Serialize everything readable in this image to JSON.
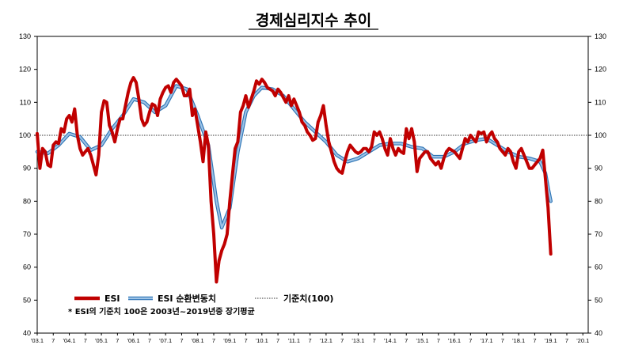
{
  "chart_data": {
    "type": "line",
    "title": "경제심리지수 추이",
    "ylim": [
      40,
      130
    ],
    "yticks": [
      40,
      50,
      60,
      70,
      80,
      90,
      100,
      110,
      120,
      130
    ],
    "right_axis_mirrored": true,
    "reference_line": {
      "value": 100,
      "label": "기준치(100)",
      "style": "dotted"
    },
    "x_start": "2003-01",
    "x_end": "2020-03",
    "xtick_labels": [
      "'03.1",
      "7",
      "'04.1",
      "7",
      "'05.1",
      "7",
      "'06.1",
      "7",
      "'07.1",
      "7",
      "'08.1",
      "7",
      "'09.1",
      "7",
      "'10.1",
      "7",
      "'11.1",
      "7",
      "'12.1",
      "7",
      "'13.1",
      "7",
      "'14.1",
      "7",
      "'15.1",
      "7",
      "'16.1",
      "7",
      "'17.1",
      "7",
      "'18.1",
      "7",
      "'19.1",
      "7",
      "'20.1"
    ],
    "legend": {
      "placement": "bottom-left"
    },
    "note": "* ESI의 기준치 100은 2003년~2019년중 장기평균",
    "series": [
      {
        "name": "ESI",
        "color": "#c00000",
        "points": [
          [
            "2003-01",
            100.5
          ],
          [
            "2003-02",
            90
          ],
          [
            "2003-03",
            96
          ],
          [
            "2003-04",
            95
          ],
          [
            "2003-05",
            91
          ],
          [
            "2003-06",
            90.5
          ],
          [
            "2003-07",
            97
          ],
          [
            "2003-08",
            98
          ],
          [
            "2003-09",
            97.5
          ],
          [
            "2003-10",
            102
          ],
          [
            "2003-11",
            101
          ],
          [
            "2003-12",
            105
          ],
          [
            "2004-01",
            106
          ],
          [
            "2004-02",
            104
          ],
          [
            "2004-03",
            108
          ],
          [
            "2004-04",
            100
          ],
          [
            "2004-05",
            96
          ],
          [
            "2004-06",
            94
          ],
          [
            "2004-07",
            95
          ],
          [
            "2004-08",
            96
          ],
          [
            "2004-09",
            94
          ],
          [
            "2004-10",
            91
          ],
          [
            "2004-11",
            88
          ],
          [
            "2004-12",
            94
          ],
          [
            "2005-01",
            107
          ],
          [
            "2005-02",
            110.5
          ],
          [
            "2005-03",
            110
          ],
          [
            "2005-04",
            103
          ],
          [
            "2005-05",
            101
          ],
          [
            "2005-06",
            98
          ],
          [
            "2005-07",
            102
          ],
          [
            "2005-08",
            105
          ],
          [
            "2005-09",
            105
          ],
          [
            "2005-10",
            109
          ],
          [
            "2005-11",
            113
          ],
          [
            "2005-12",
            116
          ],
          [
            "2006-01",
            117.5
          ],
          [
            "2006-02",
            116
          ],
          [
            "2006-03",
            111
          ],
          [
            "2006-04",
            105
          ],
          [
            "2006-05",
            103
          ],
          [
            "2006-06",
            104
          ],
          [
            "2006-07",
            107
          ],
          [
            "2006-08",
            109.5
          ],
          [
            "2006-09",
            109
          ],
          [
            "2006-10",
            106
          ],
          [
            "2006-11",
            111
          ],
          [
            "2006-12",
            113
          ],
          [
            "2007-01",
            114.5
          ],
          [
            "2007-02",
            115
          ],
          [
            "2007-03",
            113
          ],
          [
            "2007-04",
            116
          ],
          [
            "2007-05",
            117
          ],
          [
            "2007-06",
            116
          ],
          [
            "2007-07",
            115
          ],
          [
            "2007-08",
            112
          ],
          [
            "2007-09",
            112
          ],
          [
            "2007-10",
            114
          ],
          [
            "2007-11",
            106
          ],
          [
            "2007-12",
            108
          ],
          [
            "2008-01",
            103
          ],
          [
            "2008-02",
            98
          ],
          [
            "2008-03",
            92
          ],
          [
            "2008-04",
            101
          ],
          [
            "2008-05",
            97
          ],
          [
            "2008-06",
            80
          ],
          [
            "2008-07",
            70
          ],
          [
            "2008-08",
            55.5
          ],
          [
            "2008-09",
            62
          ],
          [
            "2008-10",
            65
          ],
          [
            "2008-11",
            67
          ],
          [
            "2008-12",
            70
          ],
          [
            "2009-01",
            80
          ],
          [
            "2009-02",
            88
          ],
          [
            "2009-03",
            96
          ],
          [
            "2009-04",
            98
          ],
          [
            "2009-05",
            107
          ],
          [
            "2009-06",
            109
          ],
          [
            "2009-07",
            112
          ],
          [
            "2009-08",
            108.5
          ],
          [
            "2009-09",
            111
          ],
          [
            "2009-10",
            113.5
          ],
          [
            "2009-11",
            116.5
          ],
          [
            "2009-12",
            115.5
          ],
          [
            "2010-01",
            117
          ],
          [
            "2010-02",
            116
          ],
          [
            "2010-03",
            114.5
          ],
          [
            "2010-04",
            114
          ],
          [
            "2010-05",
            113.5
          ],
          [
            "2010-06",
            112
          ],
          [
            "2010-07",
            114
          ],
          [
            "2010-08",
            113
          ],
          [
            "2010-09",
            111.5
          ],
          [
            "2010-10",
            110
          ],
          [
            "2010-11",
            112
          ],
          [
            "2010-12",
            109
          ],
          [
            "2011-01",
            111
          ],
          [
            "2011-02",
            109
          ],
          [
            "2011-03",
            107
          ],
          [
            "2011-04",
            104
          ],
          [
            "2011-05",
            103
          ],
          [
            "2011-06",
            101
          ],
          [
            "2011-07",
            100
          ],
          [
            "2011-08",
            98.5
          ],
          [
            "2011-09",
            99
          ],
          [
            "2011-10",
            104
          ],
          [
            "2011-11",
            106
          ],
          [
            "2011-12",
            109
          ],
          [
            "2012-01",
            103
          ],
          [
            "2012-02",
            98
          ],
          [
            "2012-03",
            95
          ],
          [
            "2012-04",
            92
          ],
          [
            "2012-05",
            90
          ],
          [
            "2012-06",
            89
          ],
          [
            "2012-07",
            88.5
          ],
          [
            "2012-08",
            92
          ],
          [
            "2012-09",
            95
          ],
          [
            "2012-10",
            97
          ],
          [
            "2012-11",
            96
          ],
          [
            "2012-12",
            95
          ],
          [
            "2013-01",
            94.5
          ],
          [
            "2013-02",
            95
          ],
          [
            "2013-03",
            96
          ],
          [
            "2013-04",
            96
          ],
          [
            "2013-05",
            95
          ],
          [
            "2013-06",
            96.5
          ],
          [
            "2013-07",
            101
          ],
          [
            "2013-08",
            100
          ],
          [
            "2013-09",
            101
          ],
          [
            "2013-10",
            99
          ],
          [
            "2013-11",
            96
          ],
          [
            "2013-12",
            94
          ],
          [
            "2014-01",
            99
          ],
          [
            "2014-02",
            96
          ],
          [
            "2014-03",
            94
          ],
          [
            "2014-04",
            96
          ],
          [
            "2014-05",
            95
          ],
          [
            "2014-06",
            94.5
          ],
          [
            "2014-07",
            102
          ],
          [
            "2014-08",
            99
          ],
          [
            "2014-09",
            102
          ],
          [
            "2014-10",
            98
          ],
          [
            "2014-11",
            89
          ],
          [
            "2014-12",
            93
          ],
          [
            "2015-01",
            94
          ],
          [
            "2015-02",
            95
          ],
          [
            "2015-03",
            95
          ],
          [
            "2015-04",
            93
          ],
          [
            "2015-05",
            92
          ],
          [
            "2015-06",
            91
          ],
          [
            "2015-07",
            92
          ],
          [
            "2015-08",
            90
          ],
          [
            "2015-09",
            93
          ],
          [
            "2015-10",
            95
          ],
          [
            "2015-11",
            96
          ],
          [
            "2015-12",
            95.5
          ],
          [
            "2016-01",
            95
          ],
          [
            "2016-02",
            94
          ],
          [
            "2016-03",
            93
          ],
          [
            "2016-04",
            96
          ],
          [
            "2016-05",
            99
          ],
          [
            "2016-06",
            98
          ],
          [
            "2016-07",
            100
          ],
          [
            "2016-08",
            99
          ],
          [
            "2016-09",
            98
          ],
          [
            "2016-10",
            101
          ],
          [
            "2016-11",
            100.5
          ],
          [
            "2016-12",
            101
          ],
          [
            "2017-01",
            98
          ],
          [
            "2017-02",
            100
          ],
          [
            "2017-03",
            101
          ],
          [
            "2017-04",
            99
          ],
          [
            "2017-05",
            98
          ],
          [
            "2017-06",
            96
          ],
          [
            "2017-07",
            95
          ],
          [
            "2017-08",
            94
          ],
          [
            "2017-09",
            96
          ],
          [
            "2017-10",
            95
          ],
          [
            "2017-11",
            92
          ],
          [
            "2017-12",
            90
          ],
          [
            "2018-01",
            95
          ],
          [
            "2018-02",
            96
          ],
          [
            "2018-03",
            94
          ],
          [
            "2018-04",
            92
          ],
          [
            "2018-05",
            90
          ],
          [
            "2018-06",
            90
          ],
          [
            "2018-07",
            91
          ],
          [
            "2018-08",
            92
          ],
          [
            "2018-09",
            93
          ],
          [
            "2018-10",
            95.5
          ],
          [
            "2018-11",
            87
          ],
          [
            "2018-12",
            78
          ],
          [
            "2019-01",
            64
          ]
        ]
      },
      {
        "name": "ESI 순환변동치",
        "color": "#9dc3e6",
        "points": [
          [
            "2003-01",
            95
          ],
          [
            "2003-05",
            94.5
          ],
          [
            "2003-09",
            97
          ],
          [
            "2004-01",
            100.5
          ],
          [
            "2004-05",
            99.5
          ],
          [
            "2004-09",
            95.5
          ],
          [
            "2005-01",
            97
          ],
          [
            "2005-05",
            102
          ],
          [
            "2005-09",
            106
          ],
          [
            "2006-01",
            111
          ],
          [
            "2006-05",
            110
          ],
          [
            "2006-09",
            107
          ],
          [
            "2007-01",
            109
          ],
          [
            "2007-05",
            115
          ],
          [
            "2007-09",
            114
          ],
          [
            "2008-01",
            106
          ],
          [
            "2008-05",
            97
          ],
          [
            "2008-08",
            80
          ],
          [
            "2008-10",
            72
          ],
          [
            "2009-01",
            78
          ],
          [
            "2009-04",
            95
          ],
          [
            "2009-07",
            107
          ],
          [
            "2009-10",
            112
          ],
          [
            "2010-01",
            114.5
          ],
          [
            "2010-05",
            114
          ],
          [
            "2010-09",
            112
          ],
          [
            "2011-01",
            108
          ],
          [
            "2011-05",
            104
          ],
          [
            "2011-09",
            101
          ],
          [
            "2012-01",
            98
          ],
          [
            "2012-05",
            94
          ],
          [
            "2012-09",
            92
          ],
          [
            "2013-01",
            93
          ],
          [
            "2013-05",
            95
          ],
          [
            "2013-09",
            97
          ],
          [
            "2014-01",
            97.5
          ],
          [
            "2014-05",
            97.5
          ],
          [
            "2014-09",
            96.5
          ],
          [
            "2015-01",
            96
          ],
          [
            "2015-05",
            93.5
          ],
          [
            "2015-09",
            93.5
          ],
          [
            "2016-01",
            95
          ],
          [
            "2016-05",
            97.5
          ],
          [
            "2016-09",
            98.5
          ],
          [
            "2017-01",
            99
          ],
          [
            "2017-05",
            97
          ],
          [
            "2017-09",
            95
          ],
          [
            "2018-01",
            93.5
          ],
          [
            "2018-05",
            93
          ],
          [
            "2018-09",
            92
          ],
          [
            "2018-11",
            88.5
          ],
          [
            "2018-12",
            84
          ],
          [
            "2019-01",
            80
          ]
        ]
      }
    ]
  }
}
